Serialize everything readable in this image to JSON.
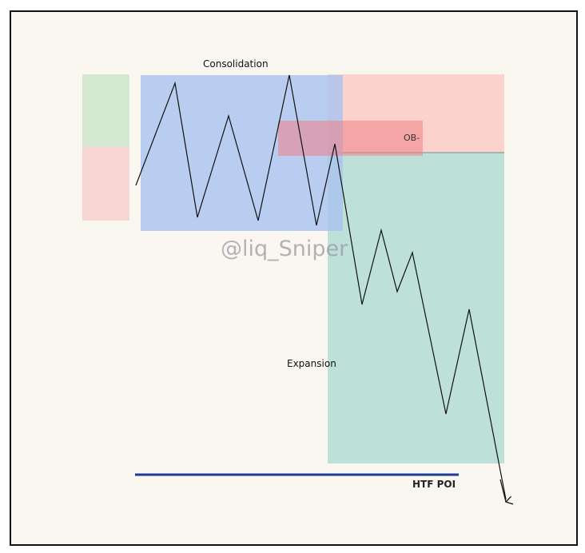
{
  "labels": {
    "consolidation": "Consolidation",
    "ob": "OB-",
    "expansion": "Expansion",
    "htf_poi": "HTF POI",
    "watermark": "@liq_Sniper"
  },
  "colors": {
    "background": "#faf7f1",
    "green_zone": "#d4e8d2",
    "red_zone": "#f8d6d3",
    "consolidation_box": "#b2c8f0",
    "ob_box": "#f49a9a",
    "supply_zone": "#fbd3cc",
    "expansion_zone": "#bde0d8",
    "htf_line": "#1f3a93",
    "price_line": "#111111"
  }
}
